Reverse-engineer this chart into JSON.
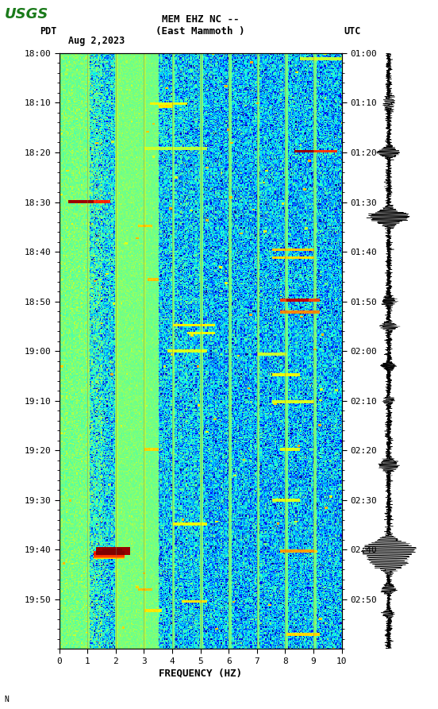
{
  "title_line1": "MEM EHZ NC --",
  "title_line2": "(East Mammoth )",
  "label_left": "PDT",
  "label_date": "Aug 2,2023",
  "label_right": "UTC",
  "time_labels_left": [
    "18:00",
    "18:10",
    "18:20",
    "18:30",
    "18:40",
    "18:50",
    "19:00",
    "19:10",
    "19:20",
    "19:30",
    "19:40",
    "19:50"
  ],
  "time_labels_right": [
    "01:00",
    "01:10",
    "01:20",
    "01:30",
    "01:40",
    "01:50",
    "02:00",
    "02:10",
    "02:20",
    "02:30",
    "02:40",
    "02:50"
  ],
  "freq_ticks": [
    0,
    1,
    2,
    3,
    4,
    5,
    6,
    7,
    8,
    9,
    10
  ],
  "xlabel": "FREQUENCY (HZ)",
  "freq_gridlines": [
    1,
    2,
    3,
    4,
    5,
    6,
    7,
    8,
    9
  ],
  "background_color": "#ffffff",
  "fig_width": 5.52,
  "fig_height": 8.93,
  "vmin": -3.5,
  "vmax": 1.0,
  "colormap": "jet",
  "grid_color": "#808060",
  "grid_alpha": 0.6,
  "grid_lw": 0.5
}
